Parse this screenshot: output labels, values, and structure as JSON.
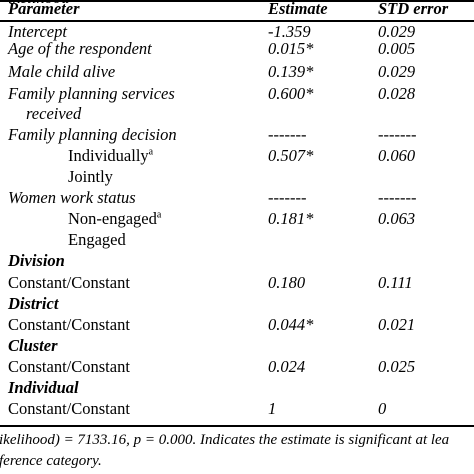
{
  "header": {
    "parameter": "Parameter",
    "estimate": "Estimate",
    "std_error": "STD error"
  },
  "rows": {
    "intercept": {
      "label": "Intercept",
      "estimate": "-1.359",
      "se": "0.029"
    },
    "age": {
      "label": "Age of the respondent",
      "estimate": "0.015*",
      "se": "0.005"
    },
    "male_child": {
      "label": "Male child alive",
      "estimate": "0.139*",
      "se": "0.029"
    },
    "fps_line1": {
      "label": "Family planning services",
      "estimate": "0.600*",
      "se": "0.028"
    },
    "fps_line2": {
      "label": "received"
    },
    "fpd": {
      "label": "Family planning decision",
      "estimate": "-------",
      "se": "-------"
    },
    "individually": {
      "label": "Individually",
      "sup": "a",
      "estimate": "0.507*",
      "se": "0.060"
    },
    "jointly": {
      "label": "Jointly"
    },
    "wws": {
      "label": "Women work status",
      "estimate": "-------",
      "se": "-------"
    },
    "non_engaged": {
      "label": "Non-engaged",
      "sup": "a",
      "estimate": "0.181*",
      "se": "0.063"
    },
    "engaged": {
      "label": "Engaged"
    },
    "division": {
      "label": "Division"
    },
    "division_cc": {
      "label": "Constant/Constant",
      "estimate": "0.180",
      "se": "0.111"
    },
    "district": {
      "label": "District"
    },
    "district_cc": {
      "label": "Constant/Constant",
      "estimate": "0.044*",
      "se": "0.021"
    },
    "cluster": {
      "label": "Cluster"
    },
    "cluster_cc": {
      "label": "Constant/Constant",
      "estimate": "0.024",
      "se": "0.025"
    },
    "individual": {
      "label": "Individual"
    },
    "individual_cc": {
      "label": "Constant/Constant",
      "estimate": "1",
      "se": "0"
    }
  },
  "notes": {
    "top_partial": "ikelihood",
    "line1": "ikelihood) = 7133.16, p = 0.000. Indicates the estimate is significant at lea",
    "line2": "ference category."
  }
}
